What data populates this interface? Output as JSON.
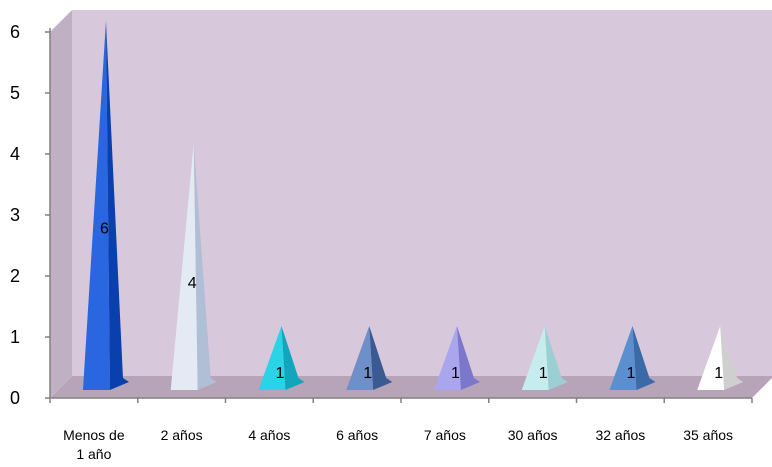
{
  "chart_data": {
    "type": "bar",
    "shape": "pyramid-3d",
    "categories": [
      [
        "Menos de",
        "1 año"
      ],
      [
        "2 años"
      ],
      [
        "4 años"
      ],
      [
        "6 años"
      ],
      [
        "7 años"
      ],
      [
        "30 años"
      ],
      [
        "32 años"
      ],
      [
        "35 años"
      ]
    ],
    "values": [
      6,
      4,
      1,
      1,
      1,
      1,
      1,
      1
    ],
    "data_labels": [
      "6",
      "4",
      "1",
      "1",
      "1",
      "1",
      "1",
      "1"
    ],
    "ylim": [
      0,
      6
    ],
    "yticks": [
      "0",
      "1",
      "2",
      "3",
      "4",
      "5",
      "6"
    ],
    "title": "",
    "xlabel": "",
    "ylabel": "",
    "legend": "none",
    "grid": false,
    "colors": {
      "wall_back": "#d8c8dc",
      "wall_side": "#c0b0c4",
      "floor": "#b8a4b8",
      "bars": [
        [
          "#2a66e0",
          "#0a3fae"
        ],
        [
          "#e4eaf4",
          "#b0bed6"
        ],
        [
          "#2ad4e6",
          "#11a6bc"
        ],
        [
          "#6f8fc8",
          "#3c5a92"
        ],
        [
          "#a9a6ee",
          "#7b78cc"
        ],
        [
          "#c6ecee",
          "#9ccfd4"
        ],
        [
          "#5b8fd0",
          "#3a6aa8"
        ],
        [
          "#ffffff",
          "#cfcfcf"
        ]
      ]
    }
  }
}
